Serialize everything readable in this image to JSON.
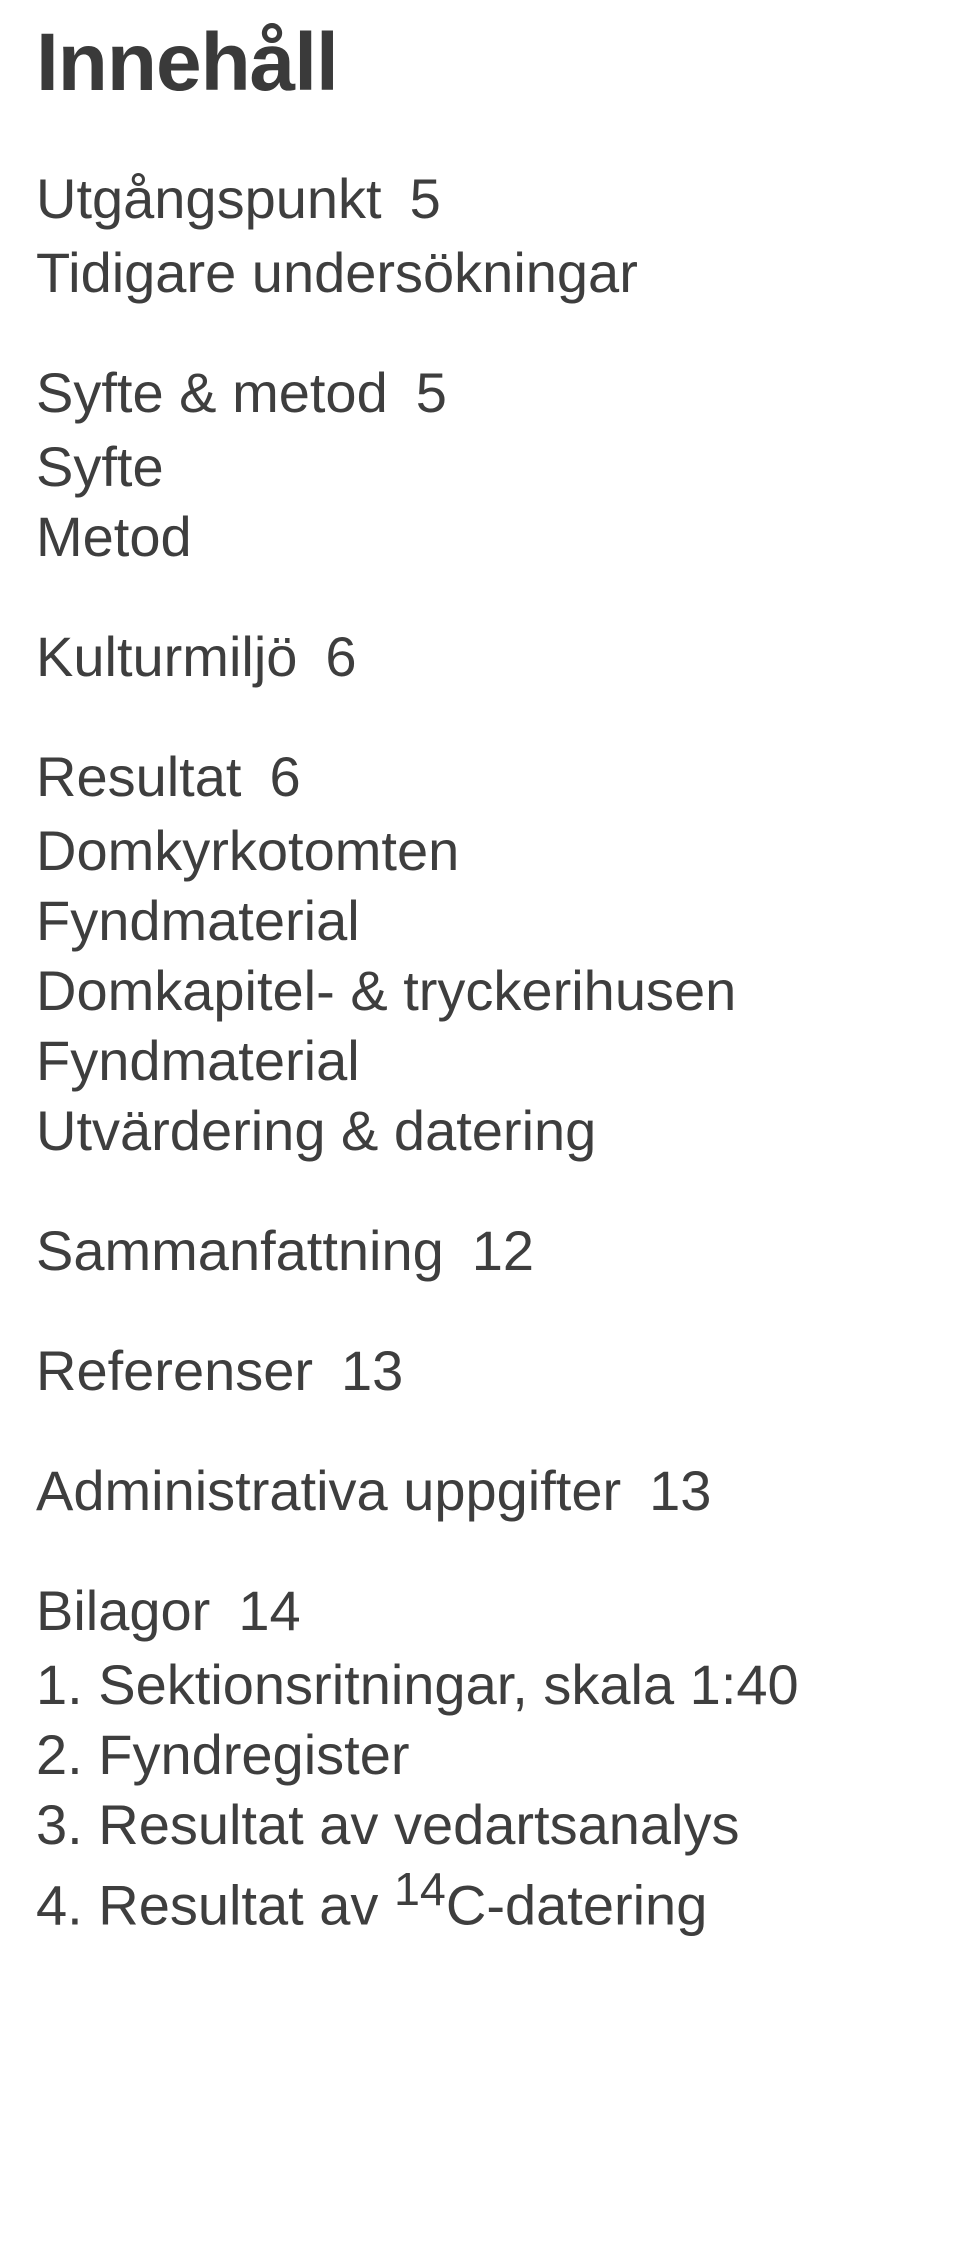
{
  "title": "Innehåll",
  "sections": [
    {
      "label": "Utgångspunkt",
      "page": "5",
      "subs": [
        "Tidigare undersökningar"
      ]
    },
    {
      "label": "Syfte & metod",
      "page": "5",
      "subs": [
        "Syfte",
        "Metod"
      ]
    },
    {
      "label": "Kulturmiljö",
      "page": "6",
      "subs": []
    },
    {
      "label": "Resultat",
      "page": "6",
      "subs": [
        "Domkyrkotomten",
        "Fyndmaterial",
        "Domkapitel- & tryckerihusen",
        "Fyndmaterial",
        "Utvärdering & datering"
      ]
    },
    {
      "label": "Sammanfattning",
      "page": "12",
      "subs": []
    },
    {
      "label": "Referenser",
      "page": "13",
      "subs": []
    },
    {
      "label": "Administrativa uppgifter",
      "page": "13",
      "subs": []
    },
    {
      "label": "Bilagor",
      "page": "14",
      "subs": [
        "1. Sektionsritningar, skala 1:40",
        "2. Fyndregister",
        "3. Resultat av vedartsanalys"
      ]
    }
  ],
  "last_sub_prefix": "4. Resultat av ",
  "last_sub_sup": "14",
  "last_sub_suffix": "C-datering"
}
